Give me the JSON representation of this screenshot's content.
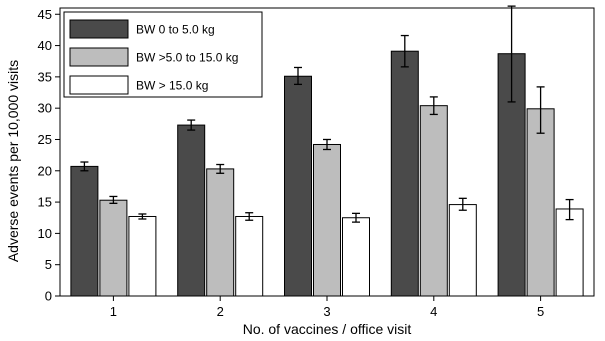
{
  "chart_data": {
    "type": "bar",
    "title": "",
    "xlabel": "No. of vaccines / office visit",
    "ylabel": "Adverse events per 10,000 visits",
    "categories": [
      "1",
      "2",
      "3",
      "4",
      "5"
    ],
    "ylim": [
      0,
      46
    ],
    "yticks": [
      0,
      5,
      10,
      15,
      20,
      25,
      30,
      35,
      40,
      45
    ],
    "grid": false,
    "legend_position": "top-left",
    "series": [
      {
        "name": "BW 0 to 5.0 kg",
        "color": "#4a4a4a",
        "values": [
          20.7,
          27.3,
          35.1,
          39.1,
          38.7
        ],
        "error_low": [
          20.0,
          26.5,
          33.8,
          36.6,
          31.0
        ],
        "error_high": [
          21.4,
          28.1,
          36.5,
          41.6,
          46.3
        ]
      },
      {
        "name": "BW >5.0 to 15.0 kg",
        "color": "#bdbdbd",
        "values": [
          15.3,
          20.3,
          24.2,
          30.4,
          29.9
        ],
        "error_low": [
          14.8,
          19.6,
          23.4,
          29.0,
          26.0
        ],
        "error_high": [
          15.9,
          21.0,
          25.0,
          31.8,
          33.4
        ]
      },
      {
        "name": "BW > 15.0 kg",
        "color": "#ffffff",
        "values": [
          12.7,
          12.7,
          12.5,
          14.6,
          13.9
        ],
        "error_low": [
          12.3,
          12.1,
          11.8,
          13.7,
          12.2
        ],
        "error_high": [
          13.1,
          13.3,
          13.2,
          15.6,
          15.4
        ]
      }
    ]
  }
}
